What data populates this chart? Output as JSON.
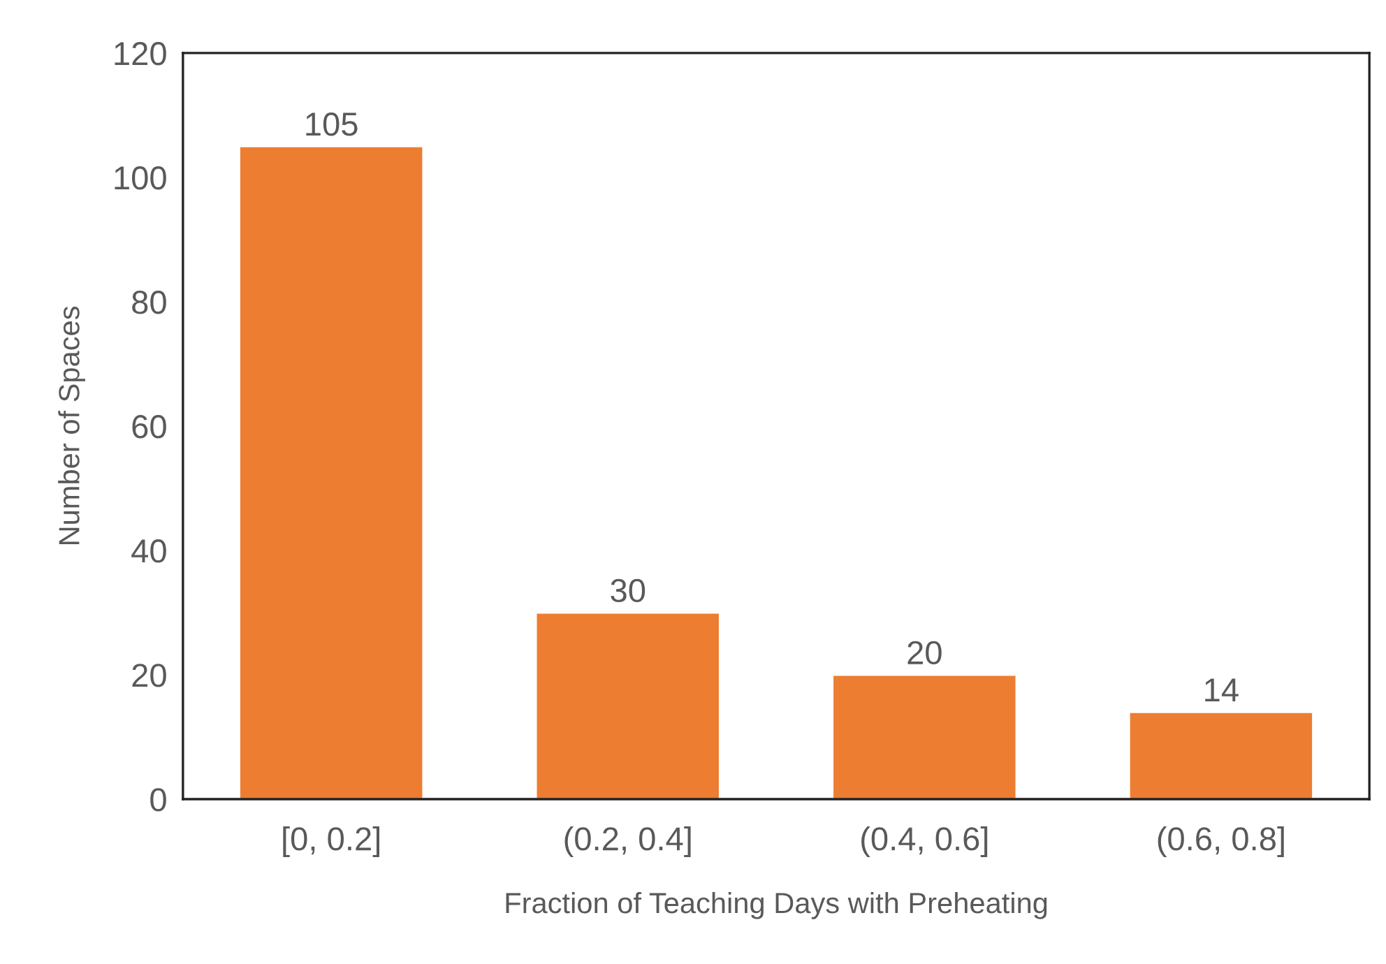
{
  "chart_data": {
    "type": "bar",
    "xlabel": "Fraction of Teaching Days with Preheating",
    "ylabel": "Number of Spaces",
    "categories": [
      "[0, 0.2]",
      "(0.2, 0.4]",
      "(0.4, 0.6]",
      "(0.6, 0.8]"
    ],
    "values": [
      105,
      30,
      20,
      14
    ],
    "color": "#ed7d31",
    "ylim": [
      0,
      120
    ],
    "yticks": [
      0,
      20,
      40,
      60,
      80,
      100,
      120
    ],
    "data_labels": true,
    "grid": false,
    "legend": false
  }
}
